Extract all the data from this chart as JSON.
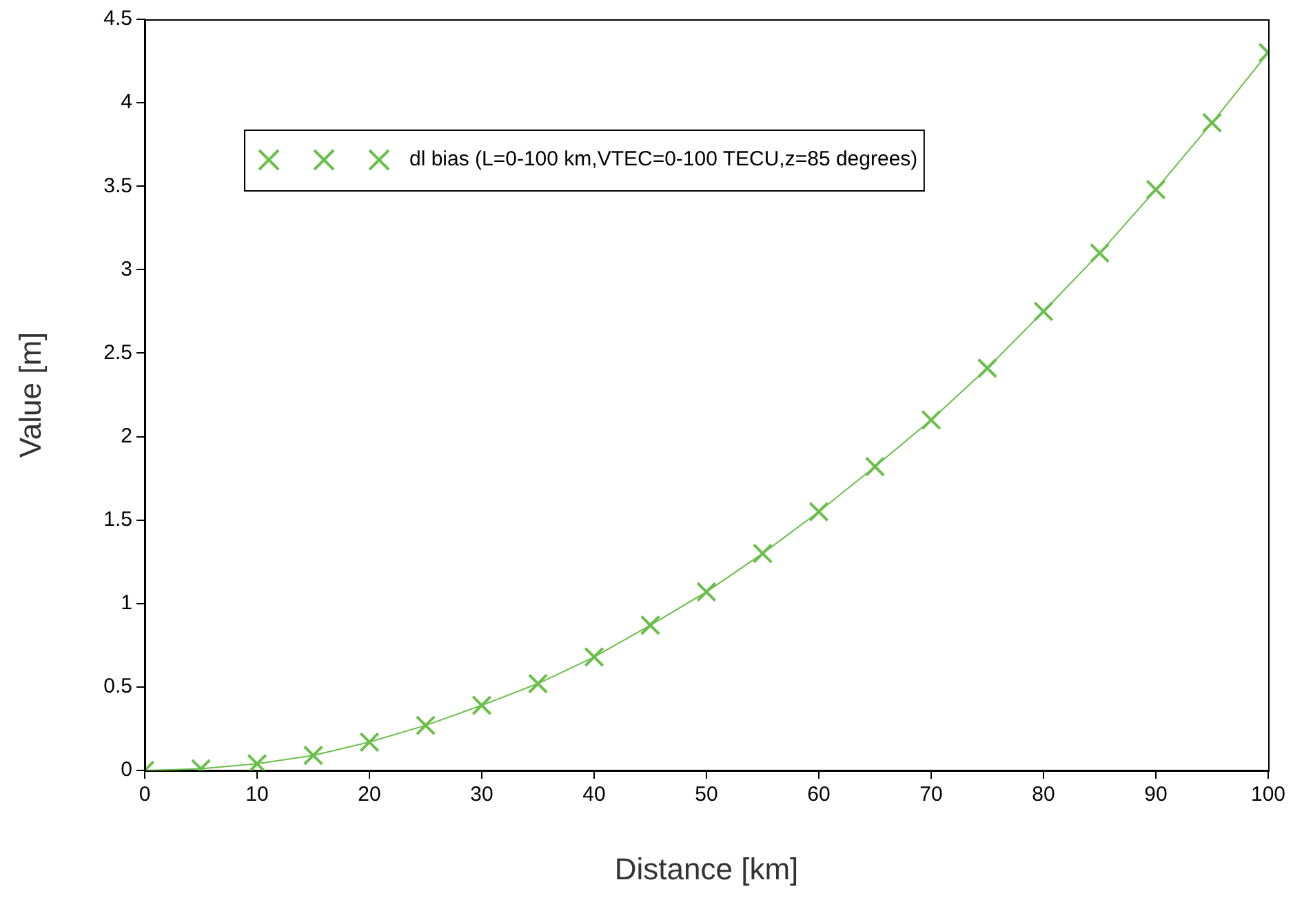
{
  "chart_data": {
    "type": "line",
    "xlabel": "Distance [km]",
    "ylabel": "Value [m]",
    "x": [
      0,
      5,
      10,
      15,
      20,
      25,
      30,
      35,
      40,
      45,
      50,
      55,
      60,
      65,
      70,
      75,
      80,
      85,
      90,
      95,
      100
    ],
    "series": [
      {
        "name": "dl bias (L=0-100 km,VTEC=0-100 TECU,z=85 degrees)",
        "color": "#6abf4b",
        "values": [
          0,
          0.01,
          0.04,
          0.09,
          0.17,
          0.27,
          0.39,
          0.52,
          0.68,
          0.87,
          1.07,
          1.3,
          1.55,
          1.82,
          2.1,
          2.41,
          2.75,
          3.1,
          3.48,
          3.88,
          4.3
        ]
      }
    ],
    "xlim": [
      0,
      100
    ],
    "xticks": [
      0,
      10,
      20,
      30,
      40,
      50,
      60,
      70,
      80,
      90,
      100
    ],
    "ylim": [
      0,
      4.5
    ],
    "yticks": [
      0,
      0.5,
      1,
      1.5,
      2,
      2.5,
      3,
      3.5,
      4,
      4.5
    ],
    "grid": false,
    "legend": "top left",
    "marker": "cross",
    "line_style": "solid"
  }
}
